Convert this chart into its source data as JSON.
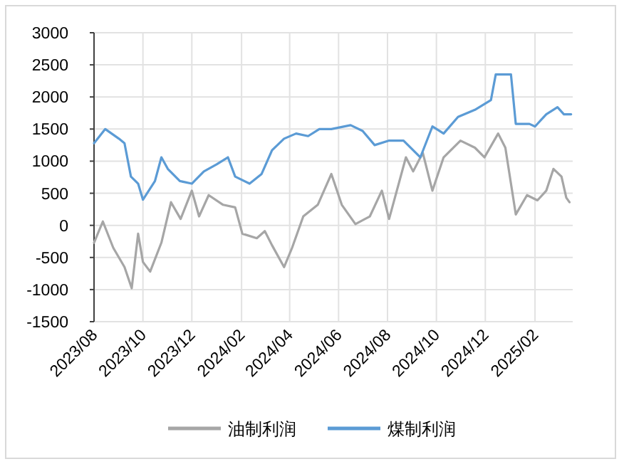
{
  "chart_data": {
    "type": "line",
    "xlim": [
      "2023-08-01",
      "2025-03-20"
    ],
    "xticks": [
      {
        "value": "2023-08-01",
        "label": "2023/08"
      },
      {
        "value": "2023-10-01",
        "label": "2023/10"
      },
      {
        "value": "2023-12-01",
        "label": "2023/12"
      },
      {
        "value": "2024-02-01",
        "label": "2024/02"
      },
      {
        "value": "2024-04-01",
        "label": "2024/04"
      },
      {
        "value": "2024-06-01",
        "label": "2024/06"
      },
      {
        "value": "2024-08-01",
        "label": "2024/08"
      },
      {
        "value": "2024-10-01",
        "label": "2024/10"
      },
      {
        "value": "2024-12-01",
        "label": "2024/12"
      },
      {
        "value": "2025-02-01",
        "label": "2025/02"
      }
    ],
    "ylim": [
      -1500,
      3000
    ],
    "yticks": [
      -1500,
      -1000,
      -500,
      0,
      500,
      1000,
      1500,
      2000,
      2500,
      3000
    ],
    "grid": true,
    "legend": "bottom",
    "marker": "none",
    "line_style": "solid",
    "series": [
      {
        "name": "油制利润",
        "color": "#a6a6a6",
        "x": [
          "2023-08-01",
          "2023-08-12",
          "2023-08-25",
          "2023-09-08",
          "2023-09-17",
          "2023-09-25",
          "2023-10-01",
          "2023-10-10",
          "2023-10-24",
          "2023-11-05",
          "2023-11-17",
          "2023-12-01",
          "2023-12-10",
          "2023-12-22",
          "2024-01-09",
          "2024-01-24",
          "2024-02-02",
          "2024-02-20",
          "2024-03-01",
          "2024-03-10",
          "2024-03-25",
          "2024-04-04",
          "2024-04-18",
          "2024-05-06",
          "2024-05-23",
          "2024-06-05",
          "2024-06-22",
          "2024-07-10",
          "2024-07-25",
          "2024-08-03",
          "2024-08-24",
          "2024-09-02",
          "2024-09-14",
          "2024-09-26",
          "2024-10-10",
          "2024-10-31",
          "2024-11-18",
          "2024-11-30",
          "2024-12-17",
          "2024-12-26",
          "2025-01-08",
          "2025-01-22",
          "2025-02-04",
          "2025-02-15",
          "2025-02-24",
          "2025-03-06",
          "2025-03-12",
          "2025-03-16"
        ],
        "values": [
          -270,
          60,
          -350,
          -650,
          -980,
          -130,
          -570,
          -720,
          -270,
          360,
          100,
          540,
          140,
          470,
          320,
          280,
          -130,
          -200,
          -90,
          -310,
          -650,
          -350,
          140,
          320,
          800,
          320,
          20,
          140,
          540,
          100,
          1060,
          840,
          1130,
          540,
          1060,
          1320,
          1210,
          1060,
          1430,
          1210,
          170,
          470,
          390,
          540,
          880,
          760,
          430,
          360
        ]
      },
      {
        "name": "煤制利润",
        "color": "#5b9bd5",
        "x": [
          "2023-08-01",
          "2023-08-15",
          "2023-09-01",
          "2023-09-08",
          "2023-09-16",
          "2023-09-25",
          "2023-10-01",
          "2023-10-16",
          "2023-10-24",
          "2023-11-01",
          "2023-11-16",
          "2023-12-01",
          "2023-12-16",
          "2024-01-01",
          "2024-01-15",
          "2024-01-24",
          "2024-02-11",
          "2024-02-26",
          "2024-03-10",
          "2024-03-25",
          "2024-04-09",
          "2024-04-24",
          "2024-05-08",
          "2024-05-23",
          "2024-06-16",
          "2024-07-01",
          "2024-07-16",
          "2024-08-03",
          "2024-08-21",
          "2024-09-11",
          "2024-09-26",
          "2024-10-10",
          "2024-10-28",
          "2024-11-18",
          "2024-12-08",
          "2024-12-14",
          "2025-01-02",
          "2025-01-08",
          "2025-01-25",
          "2025-02-01",
          "2025-02-15",
          "2025-03-01",
          "2025-03-09",
          "2025-03-18"
        ],
        "values": [
          1280,
          1500,
          1350,
          1280,
          760,
          650,
          400,
          690,
          1060,
          880,
          690,
          650,
          840,
          950,
          1060,
          760,
          650,
          800,
          1170,
          1350,
          1430,
          1390,
          1500,
          1500,
          1560,
          1470,
          1250,
          1320,
          1320,
          1060,
          1540,
          1430,
          1690,
          1800,
          1950,
          2350,
          2350,
          1580,
          1580,
          1540,
          1730,
          1840,
          1730,
          1730
        ]
      }
    ]
  }
}
